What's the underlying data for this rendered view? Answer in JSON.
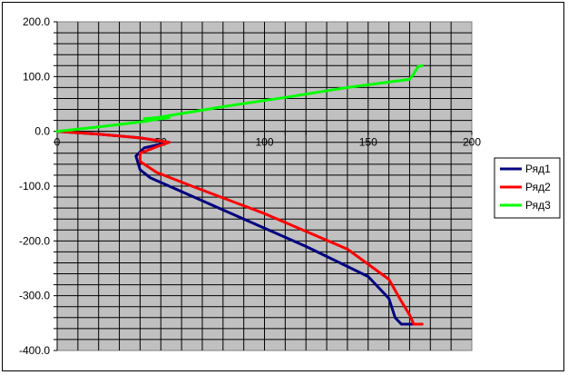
{
  "chart_data": {
    "type": "line",
    "title": "",
    "xlabel": "",
    "ylabel": "",
    "xlim": [
      0,
      200
    ],
    "ylim": [
      -400,
      200
    ],
    "x_ticks": [
      0,
      50,
      100,
      150,
      200
    ],
    "x_tick_labels": [
      "0",
      "50",
      "100",
      "150",
      "200"
    ],
    "y_ticks": [
      200,
      100,
      0,
      -100,
      -200,
      -300,
      -400
    ],
    "y_tick_labels": [
      "200.0",
      "100.0",
      "0.0",
      "-100.0",
      "-200.0",
      "-300.0",
      "-400.0"
    ],
    "grid": true,
    "plot_background": "#c0c0c0",
    "legend_position": "right",
    "series": [
      {
        "name": "Ряд1",
        "color": "#000080",
        "points": [
          [
            0,
            0
          ],
          [
            20,
            -5
          ],
          [
            40,
            -12
          ],
          [
            54,
            -20
          ],
          [
            42,
            -30
          ],
          [
            38,
            -45
          ],
          [
            40,
            -70
          ],
          [
            45,
            -85
          ],
          [
            60,
            -110
          ],
          [
            90,
            -160
          ],
          [
            120,
            -210
          ],
          [
            150,
            -265
          ],
          [
            160,
            -305
          ],
          [
            163,
            -340
          ],
          [
            166,
            -352
          ],
          [
            172,
            -352
          ]
        ]
      },
      {
        "name": "Ряд2",
        "color": "#ff0000",
        "points": [
          [
            0,
            0
          ],
          [
            20,
            -5
          ],
          [
            40,
            -12
          ],
          [
            54,
            -20
          ],
          [
            48,
            -28
          ],
          [
            40,
            -40
          ],
          [
            40,
            -55
          ],
          [
            48,
            -75
          ],
          [
            65,
            -100
          ],
          [
            100,
            -150
          ],
          [
            140,
            -215
          ],
          [
            160,
            -270
          ],
          [
            166,
            -310
          ],
          [
            170,
            -335
          ],
          [
            172,
            -352
          ],
          [
            176,
            -352
          ]
        ]
      },
      {
        "name": "Ряд3",
        "color": "#00ff00",
        "points": [
          [
            0,
            0
          ],
          [
            20,
            8
          ],
          [
            42,
            18
          ],
          [
            48,
            22
          ],
          [
            54,
            25
          ],
          [
            42,
            23
          ],
          [
            48,
            25
          ],
          [
            80,
            45
          ],
          [
            110,
            62
          ],
          [
            140,
            80
          ],
          [
            170,
            95
          ],
          [
            172,
            105
          ],
          [
            174,
            118
          ],
          [
            176,
            120
          ]
        ]
      }
    ]
  }
}
